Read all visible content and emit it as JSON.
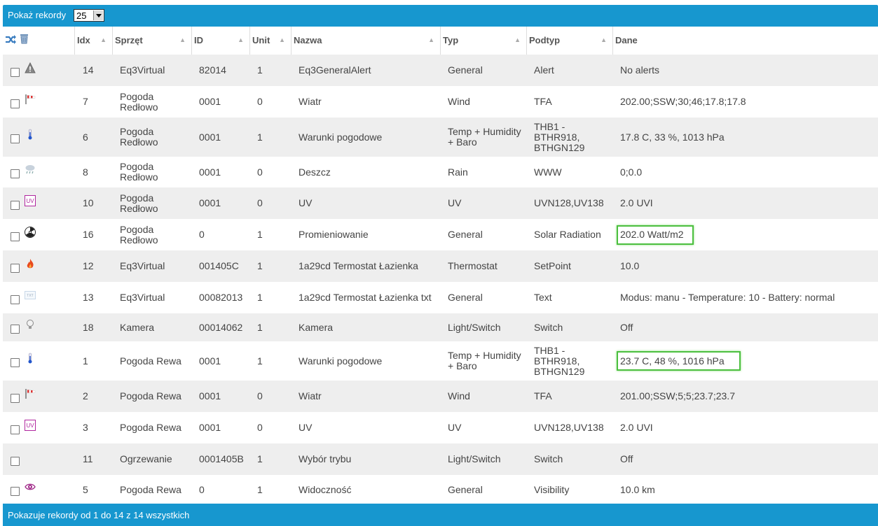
{
  "top": {
    "show_label": "Pokaż rekordy",
    "page_size": "25"
  },
  "columns": {
    "idx": "Idx",
    "sprzet": "Sprzęt",
    "id": "ID",
    "unit": "Unit",
    "nazwa": "Nazwa",
    "typ": "Typ",
    "podtyp": "Podtyp",
    "dane": "Dane"
  },
  "rows": [
    {
      "icon": "alert-icon",
      "idx": "14",
      "sprzet": [
        "Eq3Virtual"
      ],
      "id": "82014",
      "unit": "1",
      "nazwa": "Eq3GeneralAlert",
      "typ": [
        "General"
      ],
      "podtyp": [
        "Alert"
      ],
      "dane": "No alerts",
      "highlight": false
    },
    {
      "icon": "wind-icon",
      "idx": "7",
      "sprzet": [
        "Pogoda",
        "Redłowo"
      ],
      "id": "0001",
      "unit": "0",
      "nazwa": "Wiatr",
      "typ": [
        "Wind"
      ],
      "podtyp": [
        "TFA"
      ],
      "dane": "202.00;SSW;30;46;17.8;17.8",
      "highlight": false
    },
    {
      "icon": "thermometer-icon",
      "idx": "6",
      "sprzet": [
        "Pogoda",
        "Redłowo"
      ],
      "id": "0001",
      "unit": "1",
      "nazwa": "Warunki pogodowe",
      "typ": [
        "Temp + Humidity",
        "+ Baro"
      ],
      "podtyp": [
        "THB1 -",
        "BTHR918,",
        "BTHGN129"
      ],
      "dane": "17.8 C, 33 %, 1013 hPa",
      "highlight": false
    },
    {
      "icon": "rain-icon",
      "idx": "8",
      "sprzet": [
        "Pogoda",
        "Redłowo"
      ],
      "id": "0001",
      "unit": "0",
      "nazwa": "Deszcz",
      "typ": [
        "Rain"
      ],
      "podtyp": [
        "WWW"
      ],
      "dane": "0;0.0",
      "highlight": false
    },
    {
      "icon": "uv-icon",
      "idx": "10",
      "sprzet": [
        "Pogoda",
        "Redłowo"
      ],
      "id": "0001",
      "unit": "0",
      "nazwa": "UV",
      "typ": [
        "UV"
      ],
      "podtyp": [
        "UVN128,UV138"
      ],
      "dane": "2.0 UVI",
      "highlight": false
    },
    {
      "icon": "radiation-icon",
      "idx": "16",
      "sprzet": [
        "Pogoda",
        "Redłowo"
      ],
      "id": "0",
      "unit": "1",
      "nazwa": "Promieniowanie",
      "typ": [
        "General"
      ],
      "podtyp": [
        "Solar Radiation"
      ],
      "dane": "202.0 Watt/m2",
      "highlight": true
    },
    {
      "icon": "flame-icon",
      "idx": "12",
      "sprzet": [
        "Eq3Virtual"
      ],
      "id": "001405C",
      "unit": "1",
      "nazwa": "1a29cd Termostat Łazienka",
      "typ": [
        "Thermostat"
      ],
      "podtyp": [
        "SetPoint"
      ],
      "dane": "10.0",
      "highlight": false
    },
    {
      "icon": "text-icon",
      "idx": "13",
      "sprzet": [
        "Eq3Virtual"
      ],
      "id": "00082013",
      "unit": "1",
      "nazwa": "1a29cd Termostat Łazienka txt",
      "typ": [
        "General"
      ],
      "podtyp": [
        "Text"
      ],
      "dane": "Modus: manu - Temperature: 10 - Battery: normal",
      "highlight": false
    },
    {
      "icon": "bulb-icon",
      "idx": "18",
      "sprzet": [
        "Kamera"
      ],
      "id": "00014062",
      "unit": "1",
      "nazwa": "Kamera",
      "typ": [
        "Light/Switch"
      ],
      "podtyp": [
        "Switch"
      ],
      "dane": "Off",
      "highlight": false
    },
    {
      "icon": "thermometer-icon",
      "idx": "1",
      "sprzet": [
        "Pogoda Rewa"
      ],
      "id": "0001",
      "unit": "1",
      "nazwa": "Warunki pogodowe",
      "typ": [
        "Temp + Humidity",
        "+ Baro"
      ],
      "podtyp": [
        "THB1 -",
        "BTHR918,",
        "BTHGN129"
      ],
      "dane": "23.7 C, 48 %, 1016 hPa",
      "highlight": true
    },
    {
      "icon": "wind-icon",
      "idx": "2",
      "sprzet": [
        "Pogoda Rewa"
      ],
      "id": "0001",
      "unit": "0",
      "nazwa": "Wiatr",
      "typ": [
        "Wind"
      ],
      "podtyp": [
        "TFA"
      ],
      "dane": "201.00;SSW;5;5;23.7;23.7",
      "highlight": false
    },
    {
      "icon": "uv-icon",
      "idx": "3",
      "sprzet": [
        "Pogoda Rewa"
      ],
      "id": "0001",
      "unit": "0",
      "nazwa": "UV",
      "typ": [
        "UV"
      ],
      "podtyp": [
        "UVN128,UV138"
      ],
      "dane": "2.0 UVI",
      "highlight": false
    },
    {
      "icon": "none",
      "idx": "11",
      "sprzet": [
        "Ogrzewanie"
      ],
      "id": "0001405B",
      "unit": "1",
      "nazwa": "Wybór trybu",
      "typ": [
        "Light/Switch"
      ],
      "podtyp": [
        "Switch"
      ],
      "dane": "Off",
      "highlight": false
    },
    {
      "icon": "eye-icon",
      "idx": "5",
      "sprzet": [
        "Pogoda Rewa"
      ],
      "id": "0",
      "unit": "1",
      "nazwa": "Widoczność",
      "typ": [
        "General"
      ],
      "podtyp": [
        "Visibility"
      ],
      "dane": "10.0 km",
      "highlight": false
    }
  ],
  "footer": {
    "info": "Pokazuje rekordy od 1 do 14 z 14 wszystkich"
  }
}
